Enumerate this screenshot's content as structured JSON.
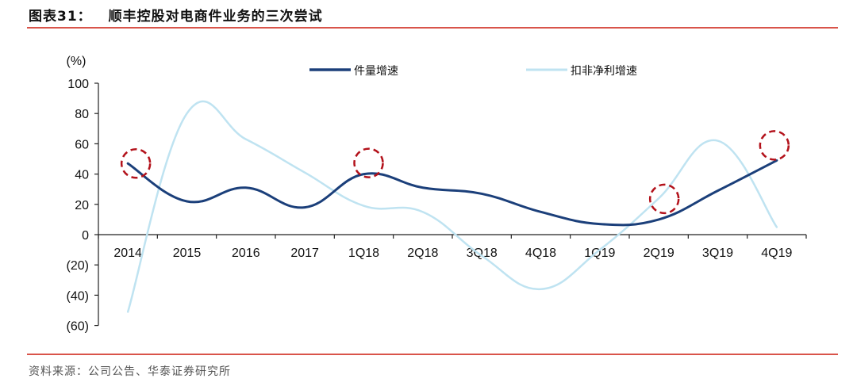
{
  "header": {
    "figure_label": "图表31：",
    "title": "顺丰控股对电商件业务的三次尝试"
  },
  "footer": {
    "source": "资料来源：公司公告、华泰证券研究所"
  },
  "colors": {
    "series1": "#1b3f7a",
    "series2": "#bfe3f1",
    "highlight": "#b3121b",
    "rule": "#d9544a"
  },
  "chart_data": {
    "type": "line",
    "title": "顺丰控股对电商件业务的三次尝试",
    "xlabel": "",
    "ylabel": "(%)",
    "ylim": [
      -60,
      100
    ],
    "yticks": [
      100,
      80,
      60,
      40,
      20,
      0,
      -20,
      -40,
      -60
    ],
    "ytick_labels": [
      "100",
      "80",
      "60",
      "40",
      "20",
      "0",
      "(20)",
      "(40)",
      "(60)"
    ],
    "categories": [
      "2014",
      "2015",
      "2016",
      "2017",
      "1Q18",
      "2Q18",
      "3Q18",
      "4Q18",
      "1Q19",
      "2Q19",
      "3Q19",
      "4Q19"
    ],
    "series": [
      {
        "name": "件量增速",
        "values": [
          47,
          22,
          31,
          18,
          40,
          31,
          27,
          15,
          7,
          10,
          29,
          49
        ]
      },
      {
        "name": "扣非净利增速",
        "values": [
          -51,
          80,
          63,
          41,
          19,
          15,
          -14,
          -36,
          -10,
          24,
          62,
          5
        ]
      }
    ],
    "legend_position": "top",
    "grid": false,
    "annotations": [
      {
        "type": "dashed-circle",
        "category": "2014",
        "series": "件量增速"
      },
      {
        "type": "dashed-circle",
        "category": "1Q18",
        "series": "件量增速"
      },
      {
        "type": "dashed-circle",
        "category": "2Q19",
        "series": "件量增速"
      },
      {
        "type": "dashed-circle",
        "category": "4Q19",
        "series": "件量增速"
      }
    ]
  }
}
